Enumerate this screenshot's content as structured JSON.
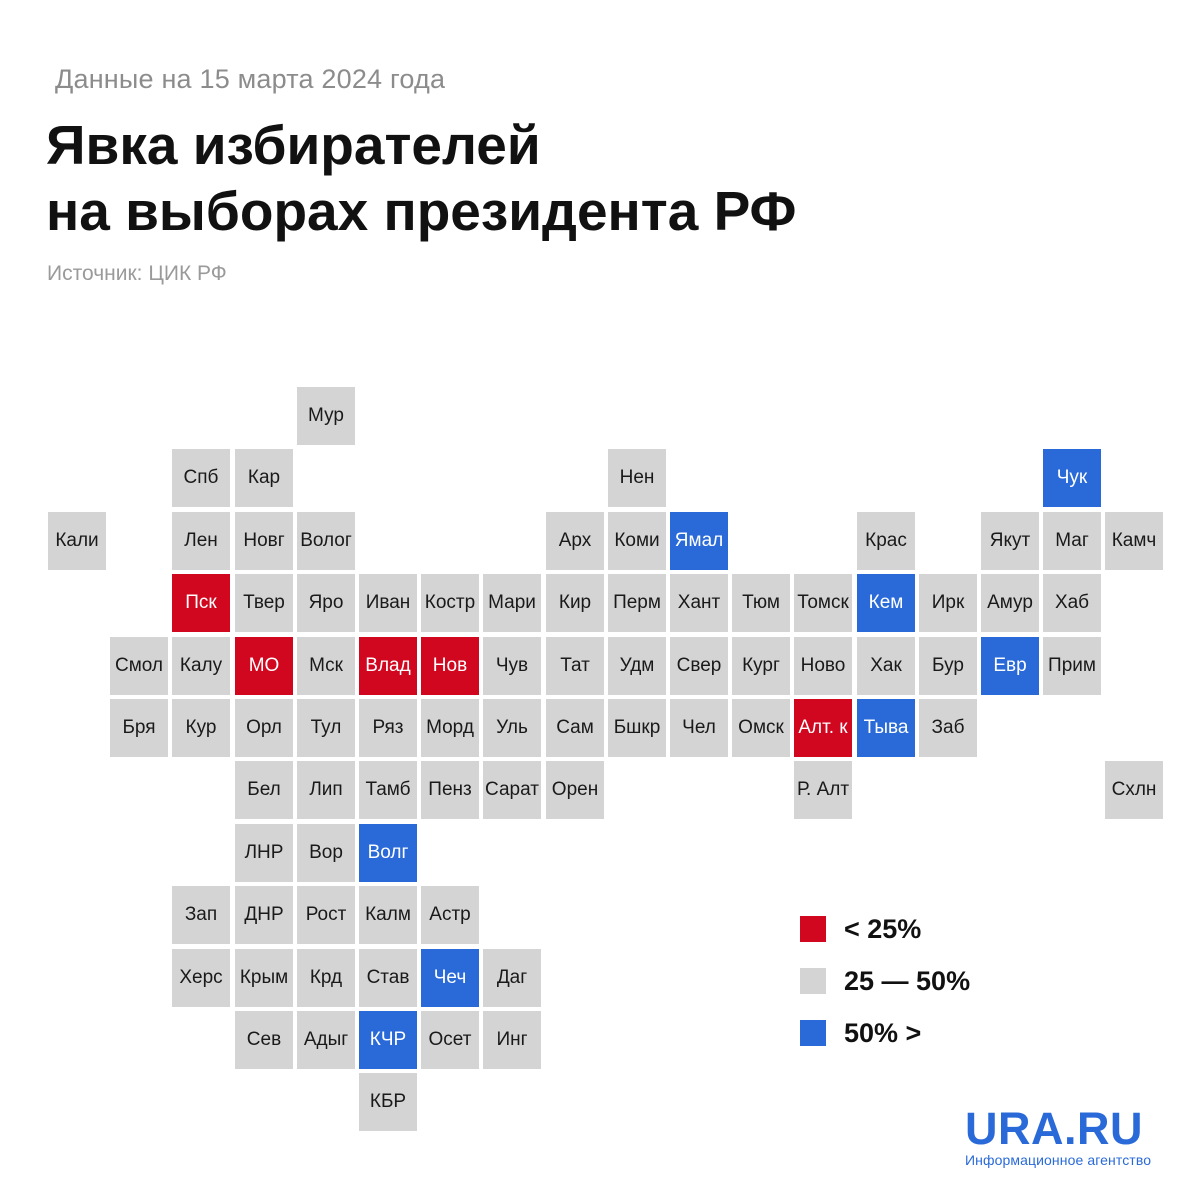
{
  "header": {
    "date_note": "Данные на 15 марта 2024 года",
    "title_line1": "Явка избирателей",
    "title_line2": "на выборах президента РФ",
    "source": "Источник: ЦИК РФ"
  },
  "colors": {
    "red": "#d0071e",
    "gray": "#d4d4d4",
    "blue": "#2a6ad8"
  },
  "legend": [
    {
      "label": "< 25%",
      "category": "red"
    },
    {
      "label": "25 — 50%",
      "category": "gray"
    },
    {
      "label": "50% >",
      "category": "blue"
    }
  ],
  "brand": {
    "name": "URA.RU",
    "tagline": "Информационное агентство"
  },
  "regions": [
    {
      "label": "Мур",
      "col": 5,
      "row": 0,
      "category": "gray"
    },
    {
      "label": "Спб",
      "col": 3,
      "row": 1,
      "category": "gray"
    },
    {
      "label": "Кар",
      "col": 4,
      "row": 1,
      "category": "gray"
    },
    {
      "label": "Нен",
      "col": 10,
      "row": 1,
      "category": "gray"
    },
    {
      "label": "Чук",
      "col": 17,
      "row": 1,
      "category": "blue"
    },
    {
      "label": "Кали",
      "col": 1,
      "row": 2,
      "category": "gray"
    },
    {
      "label": "Лен",
      "col": 3,
      "row": 2,
      "category": "gray"
    },
    {
      "label": "Новг",
      "col": 4,
      "row": 2,
      "category": "gray"
    },
    {
      "label": "Волог",
      "col": 5,
      "row": 2,
      "category": "gray"
    },
    {
      "label": "Арх",
      "col": 9,
      "row": 2,
      "category": "gray"
    },
    {
      "label": "Коми",
      "col": 10,
      "row": 2,
      "category": "gray"
    },
    {
      "label": "Ямал",
      "col": 11,
      "row": 2,
      "category": "blue"
    },
    {
      "label": "Крас",
      "col": 14,
      "row": 2,
      "category": "gray"
    },
    {
      "label": "Якут",
      "col": 16,
      "row": 2,
      "category": "gray"
    },
    {
      "label": "Маг",
      "col": 17,
      "row": 2,
      "category": "gray"
    },
    {
      "label": "Камч",
      "col": 18,
      "row": 2,
      "category": "gray"
    },
    {
      "label": "Пск",
      "col": 3,
      "row": 3,
      "category": "red"
    },
    {
      "label": "Твер",
      "col": 4,
      "row": 3,
      "category": "gray"
    },
    {
      "label": "Яро",
      "col": 5,
      "row": 3,
      "category": "gray"
    },
    {
      "label": "Иван",
      "col": 6,
      "row": 3,
      "category": "gray"
    },
    {
      "label": "Костр",
      "col": 7,
      "row": 3,
      "category": "gray"
    },
    {
      "label": "Мари",
      "col": 8,
      "row": 3,
      "category": "gray"
    },
    {
      "label": "Кир",
      "col": 9,
      "row": 3,
      "category": "gray"
    },
    {
      "label": "Перм",
      "col": 10,
      "row": 3,
      "category": "gray"
    },
    {
      "label": "Хант",
      "col": 11,
      "row": 3,
      "category": "gray"
    },
    {
      "label": "Тюм",
      "col": 12,
      "row": 3,
      "category": "gray"
    },
    {
      "label": "Томск",
      "col": 13,
      "row": 3,
      "category": "gray"
    },
    {
      "label": "Кем",
      "col": 14,
      "row": 3,
      "category": "blue"
    },
    {
      "label": "Ирк",
      "col": 15,
      "row": 3,
      "category": "gray"
    },
    {
      "label": "Амур",
      "col": 16,
      "row": 3,
      "category": "gray"
    },
    {
      "label": "Хаб",
      "col": 17,
      "row": 3,
      "category": "gray"
    },
    {
      "label": "Смол",
      "col": 2,
      "row": 4,
      "category": "gray"
    },
    {
      "label": "Калу",
      "col": 3,
      "row": 4,
      "category": "gray"
    },
    {
      "label": "МО",
      "col": 4,
      "row": 4,
      "category": "red"
    },
    {
      "label": "Мск",
      "col": 5,
      "row": 4,
      "category": "gray"
    },
    {
      "label": "Влад",
      "col": 6,
      "row": 4,
      "category": "red"
    },
    {
      "label": "Нов",
      "col": 7,
      "row": 4,
      "category": "red"
    },
    {
      "label": "Чув",
      "col": 8,
      "row": 4,
      "category": "gray"
    },
    {
      "label": "Тат",
      "col": 9,
      "row": 4,
      "category": "gray"
    },
    {
      "label": "Удм",
      "col": 10,
      "row": 4,
      "category": "gray"
    },
    {
      "label": "Свер",
      "col": 11,
      "row": 4,
      "category": "gray"
    },
    {
      "label": "Кург",
      "col": 12,
      "row": 4,
      "category": "gray"
    },
    {
      "label": "Ново",
      "col": 13,
      "row": 4,
      "category": "gray"
    },
    {
      "label": "Хак",
      "col": 14,
      "row": 4,
      "category": "gray"
    },
    {
      "label": "Бур",
      "col": 15,
      "row": 4,
      "category": "gray"
    },
    {
      "label": "Евр",
      "col": 16,
      "row": 4,
      "category": "blue"
    },
    {
      "label": "Прим",
      "col": 17,
      "row": 4,
      "category": "gray"
    },
    {
      "label": "Бря",
      "col": 2,
      "row": 5,
      "category": "gray"
    },
    {
      "label": "Кур",
      "col": 3,
      "row": 5,
      "category": "gray"
    },
    {
      "label": "Орл",
      "col": 4,
      "row": 5,
      "category": "gray"
    },
    {
      "label": "Тул",
      "col": 5,
      "row": 5,
      "category": "gray"
    },
    {
      "label": "Ряз",
      "col": 6,
      "row": 5,
      "category": "gray"
    },
    {
      "label": "Морд",
      "col": 7,
      "row": 5,
      "category": "gray"
    },
    {
      "label": "Уль",
      "col": 8,
      "row": 5,
      "category": "gray"
    },
    {
      "label": "Сам",
      "col": 9,
      "row": 5,
      "category": "gray"
    },
    {
      "label": "Бшкр",
      "col": 10,
      "row": 5,
      "category": "gray"
    },
    {
      "label": "Чел",
      "col": 11,
      "row": 5,
      "category": "gray"
    },
    {
      "label": "Омск",
      "col": 12,
      "row": 5,
      "category": "gray"
    },
    {
      "label": "Алт. к",
      "col": 13,
      "row": 5,
      "category": "red"
    },
    {
      "label": "Тыва",
      "col": 14,
      "row": 5,
      "category": "blue"
    },
    {
      "label": "Заб",
      "col": 15,
      "row": 5,
      "category": "gray"
    },
    {
      "label": "Бел",
      "col": 4,
      "row": 6,
      "category": "gray"
    },
    {
      "label": "Лип",
      "col": 5,
      "row": 6,
      "category": "gray"
    },
    {
      "label": "Тамб",
      "col": 6,
      "row": 6,
      "category": "gray"
    },
    {
      "label": "Пенз",
      "col": 7,
      "row": 6,
      "category": "gray"
    },
    {
      "label": "Сарат",
      "col": 8,
      "row": 6,
      "category": "gray"
    },
    {
      "label": "Орен",
      "col": 9,
      "row": 6,
      "category": "gray"
    },
    {
      "label": "Р. Алт",
      "col": 13,
      "row": 6,
      "category": "gray"
    },
    {
      "label": "Схлн",
      "col": 18,
      "row": 6,
      "category": "gray"
    },
    {
      "label": "ЛНР",
      "col": 4,
      "row": 7,
      "category": "gray"
    },
    {
      "label": "Вор",
      "col": 5,
      "row": 7,
      "category": "gray"
    },
    {
      "label": "Волг",
      "col": 6,
      "row": 7,
      "category": "blue"
    },
    {
      "label": "Зап",
      "col": 3,
      "row": 8,
      "category": "gray"
    },
    {
      "label": "ДНР",
      "col": 4,
      "row": 8,
      "category": "gray"
    },
    {
      "label": "Рост",
      "col": 5,
      "row": 8,
      "category": "gray"
    },
    {
      "label": "Калм",
      "col": 6,
      "row": 8,
      "category": "gray"
    },
    {
      "label": "Астр",
      "col": 7,
      "row": 8,
      "category": "gray"
    },
    {
      "label": "Херс",
      "col": 3,
      "row": 9,
      "category": "gray"
    },
    {
      "label": "Крым",
      "col": 4,
      "row": 9,
      "category": "gray"
    },
    {
      "label": "Крд",
      "col": 5,
      "row": 9,
      "category": "gray"
    },
    {
      "label": "Став",
      "col": 6,
      "row": 9,
      "category": "gray"
    },
    {
      "label": "Чеч",
      "col": 7,
      "row": 9,
      "category": "blue"
    },
    {
      "label": "Даг",
      "col": 8,
      "row": 9,
      "category": "gray"
    },
    {
      "label": "Сев",
      "col": 4,
      "row": 10,
      "category": "gray"
    },
    {
      "label": "Адыг",
      "col": 5,
      "row": 10,
      "category": "gray"
    },
    {
      "label": "КЧР",
      "col": 6,
      "row": 10,
      "category": "blue"
    },
    {
      "label": "Осет",
      "col": 7,
      "row": 10,
      "category": "gray"
    },
    {
      "label": "Инг",
      "col": 8,
      "row": 10,
      "category": "gray"
    },
    {
      "label": "КБР",
      "col": 6,
      "row": 11,
      "category": "gray"
    }
  ]
}
